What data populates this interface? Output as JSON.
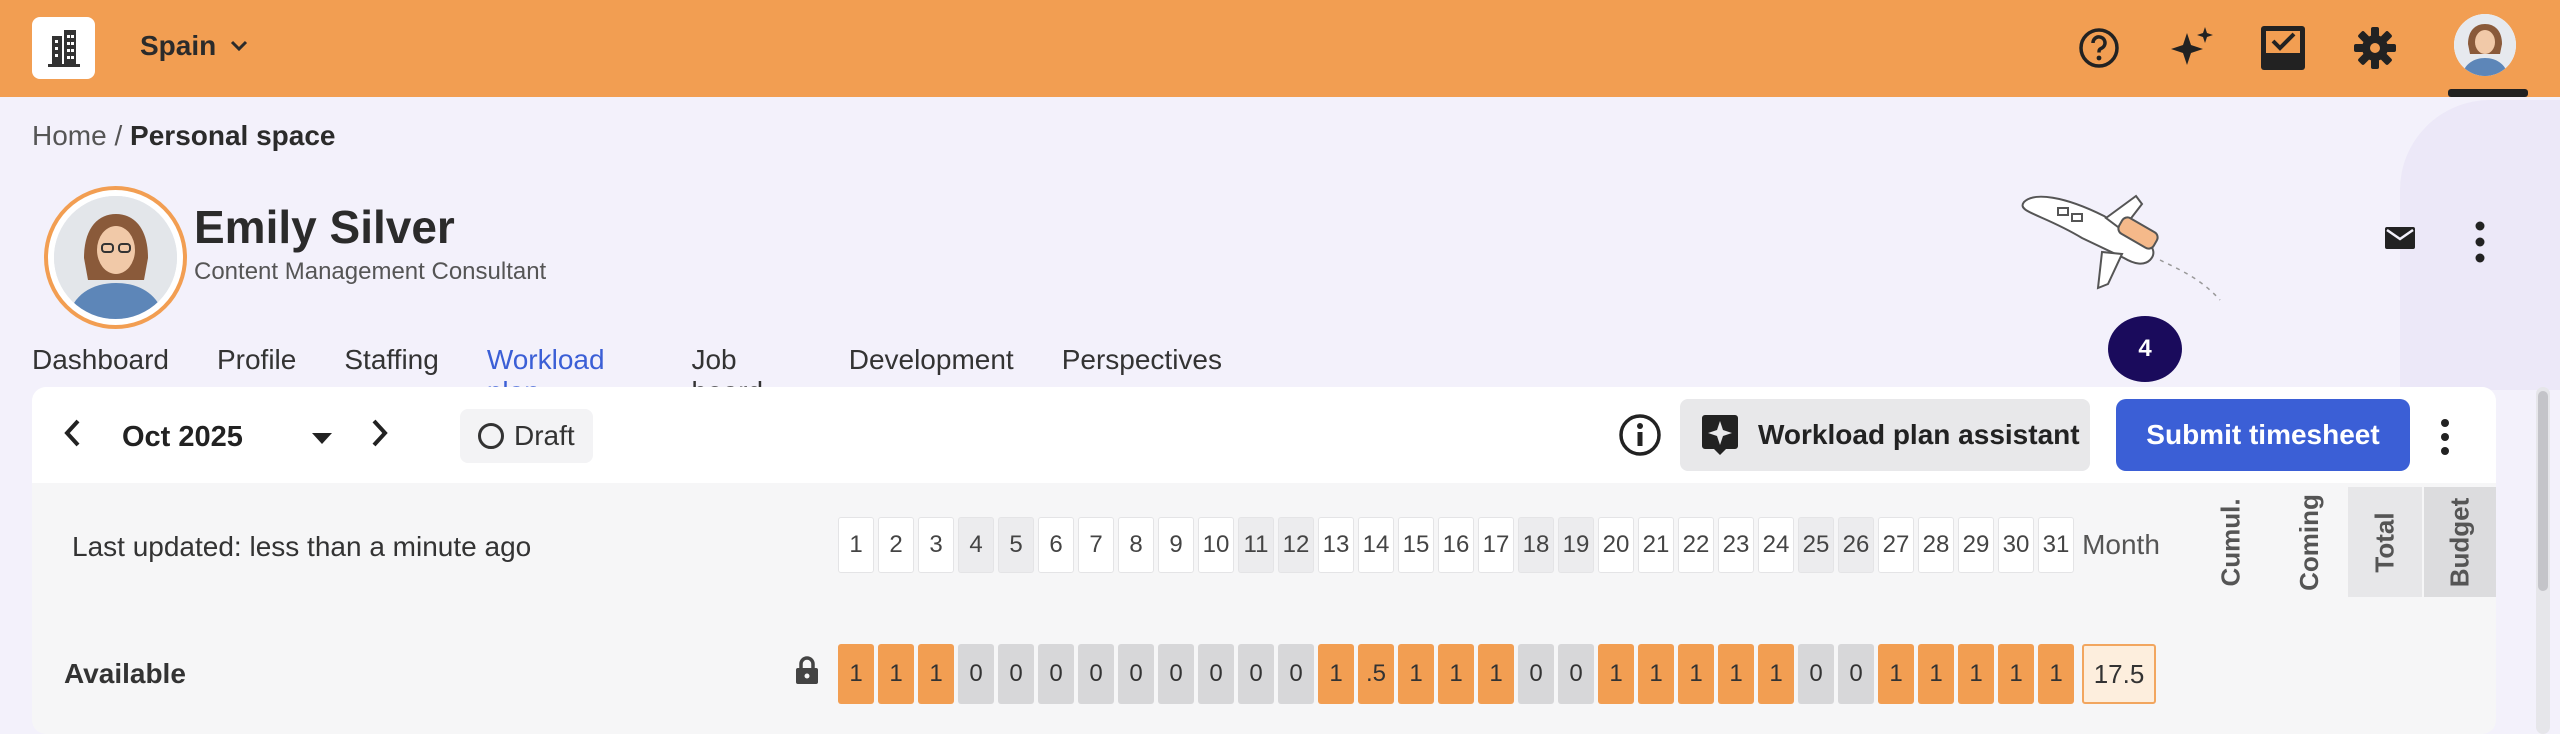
{
  "topbar": {
    "country": "Spain",
    "icons": [
      "building-icon",
      "help-icon",
      "sparkle-icon",
      "tasks-icon",
      "gear-icon",
      "user-avatar"
    ]
  },
  "breadcrumb": {
    "home": "Home",
    "separator": "/",
    "current": "Personal space"
  },
  "profile": {
    "name": "Emily Silver",
    "title": "Content Management Consultant"
  },
  "tabs": [
    "Dashboard",
    "Profile",
    "Staffing",
    "Workload plan",
    "Job board",
    "Development",
    "Perspectives"
  ],
  "active_tab": "Workload plan",
  "notification_count": "4",
  "toolbar": {
    "month": "Oct 2025",
    "status": "Draft",
    "assistant_label": "Workload plan assistant",
    "submit_label": "Submit timesheet"
  },
  "last_updated": "Last updated: less than a minute ago",
  "days": [
    "1",
    "2",
    "3",
    "4",
    "5",
    "6",
    "7",
    "8",
    "9",
    "10",
    "11",
    "12",
    "13",
    "14",
    "15",
    "16",
    "17",
    "18",
    "19",
    "20",
    "21",
    "22",
    "23",
    "24",
    "25",
    "26",
    "27",
    "28",
    "29",
    "30",
    "31"
  ],
  "weekend_days": [
    "4",
    "5",
    "11",
    "12",
    "18",
    "19",
    "25",
    "26"
  ],
  "month_header": "Month",
  "summary_columns": [
    "Cumul.",
    "Coming",
    "Total",
    "Budget"
  ],
  "available": {
    "label": "Available",
    "values": [
      "1",
      "1",
      "1",
      "0",
      "0",
      "0",
      "0",
      "0",
      "0",
      "0",
      "0",
      "0",
      "1",
      ".5",
      "1",
      "1",
      "1",
      "0",
      "0",
      "1",
      "1",
      "1",
      "1",
      "1",
      "0",
      "0",
      "1",
      "1",
      "1",
      "1",
      "1"
    ],
    "month_total": "17.5"
  },
  "colors": {
    "accent_orange": "#f29e52",
    "primary_blue": "#3b5fd6",
    "badge_navy": "#1a0b5c"
  }
}
